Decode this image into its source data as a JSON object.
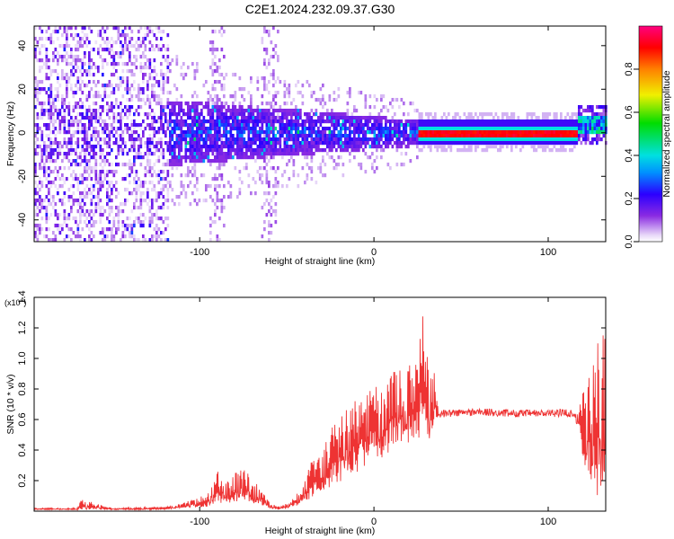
{
  "title": "C2E1.2024.232.09.37.G30",
  "colors": {
    "snr_line": "#ee3333",
    "frame": "#000000",
    "background": "#ffffff"
  },
  "chart_data": [
    {
      "type": "heatmap",
      "title": "C2E1.2024.232.09.37.G30",
      "xlabel": "Height of straight line (km)",
      "ylabel": "Frequency (Hz)",
      "xlim": [
        -195,
        133
      ],
      "ylim": [
        -50,
        49
      ],
      "x_ticks": [
        -100,
        0,
        100
      ],
      "y_ticks": [
        -40,
        -20,
        0,
        20,
        40
      ],
      "colormap": "rainbow (white → purple → blue → cyan → green → yellow → orange → red → magenta)",
      "colorbar": {
        "label": "Normalized spectral amplitude",
        "range": [
          0,
          1
        ],
        "ticks": [
          0.0,
          0.2,
          0.4,
          0.6,
          0.8
        ]
      },
      "features": [
        {
          "name": "scattered noise",
          "x_range": [
            -195,
            -118
          ],
          "freq_spread": [
            -50,
            49
          ],
          "amplitude": 0.15
        },
        {
          "name": "broad signal",
          "x_range": [
            -118,
            25
          ],
          "freq_center": 0,
          "freq_halfwidth_start": 15,
          "freq_halfwidth_end": 6,
          "amplitude": 0.35
        },
        {
          "name": "strong carrier",
          "x_range": [
            25,
            117
          ],
          "freq_center": 0,
          "amplitude": 0.95
        },
        {
          "name": "tail",
          "x_range": [
            117,
            133
          ],
          "freq_center": 3,
          "amplitude": 0.5
        }
      ]
    },
    {
      "type": "line",
      "xlabel": "Height of straight line (km)",
      "ylabel": "SNR (10 * v/v)",
      "y_multiplier": "(x10^4)",
      "xlim": [
        -195,
        133
      ],
      "ylim": [
        0,
        1.4
      ],
      "x_ticks": [
        -100,
        0,
        100
      ],
      "y_ticks": [
        0.2,
        0.4,
        0.6,
        0.8,
        1.0,
        1.2,
        1.4
      ],
      "series": [
        {
          "color": "#ee3333",
          "envelope_x": [
            -195,
            -170,
            -168,
            -150,
            -120,
            -110,
            -95,
            -90,
            -85,
            -80,
            -75,
            -70,
            -65,
            -60,
            -55,
            -50,
            -45,
            -40,
            -35,
            -30,
            -25,
            -20,
            -15,
            -10,
            -5,
            0,
            5,
            10,
            15,
            20,
            25,
            28,
            30,
            33,
            35,
            37,
            40,
            60,
            80,
            100,
            110,
            115,
            118,
            120,
            125,
            130,
            133
          ],
          "envelope_y": [
            0.02,
            0.02,
            0.08,
            0.02,
            0.03,
            0.05,
            0.12,
            0.28,
            0.2,
            0.25,
            0.3,
            0.22,
            0.15,
            0.06,
            0.03,
            0.05,
            0.1,
            0.2,
            0.35,
            0.4,
            0.55,
            0.6,
            0.7,
            0.75,
            0.8,
            0.85,
            0.8,
            0.9,
            0.95,
            0.95,
            1.1,
            1.4,
            1.15,
            0.95,
            0.9,
            0.65,
            0.66,
            0.67,
            0.66,
            0.66,
            0.67,
            0.66,
            0.7,
            0.85,
            1.0,
            1.2,
            1.35
          ],
          "baseline_y": [
            0.01,
            0.01,
            0.01,
            0.01,
            0.01,
            0.02,
            0.03,
            0.05,
            0.05,
            0.05,
            0.06,
            0.05,
            0.04,
            0.02,
            0.01,
            0.02,
            0.03,
            0.05,
            0.1,
            0.12,
            0.15,
            0.18,
            0.22,
            0.25,
            0.3,
            0.35,
            0.35,
            0.4,
            0.45,
            0.45,
            0.45,
            0.5,
            0.45,
            0.45,
            0.6,
            0.62,
            0.62,
            0.63,
            0.62,
            0.62,
            0.62,
            0.61,
            0.5,
            0.3,
            0.1,
            0.1,
            0.2
          ]
        }
      ]
    }
  ]
}
